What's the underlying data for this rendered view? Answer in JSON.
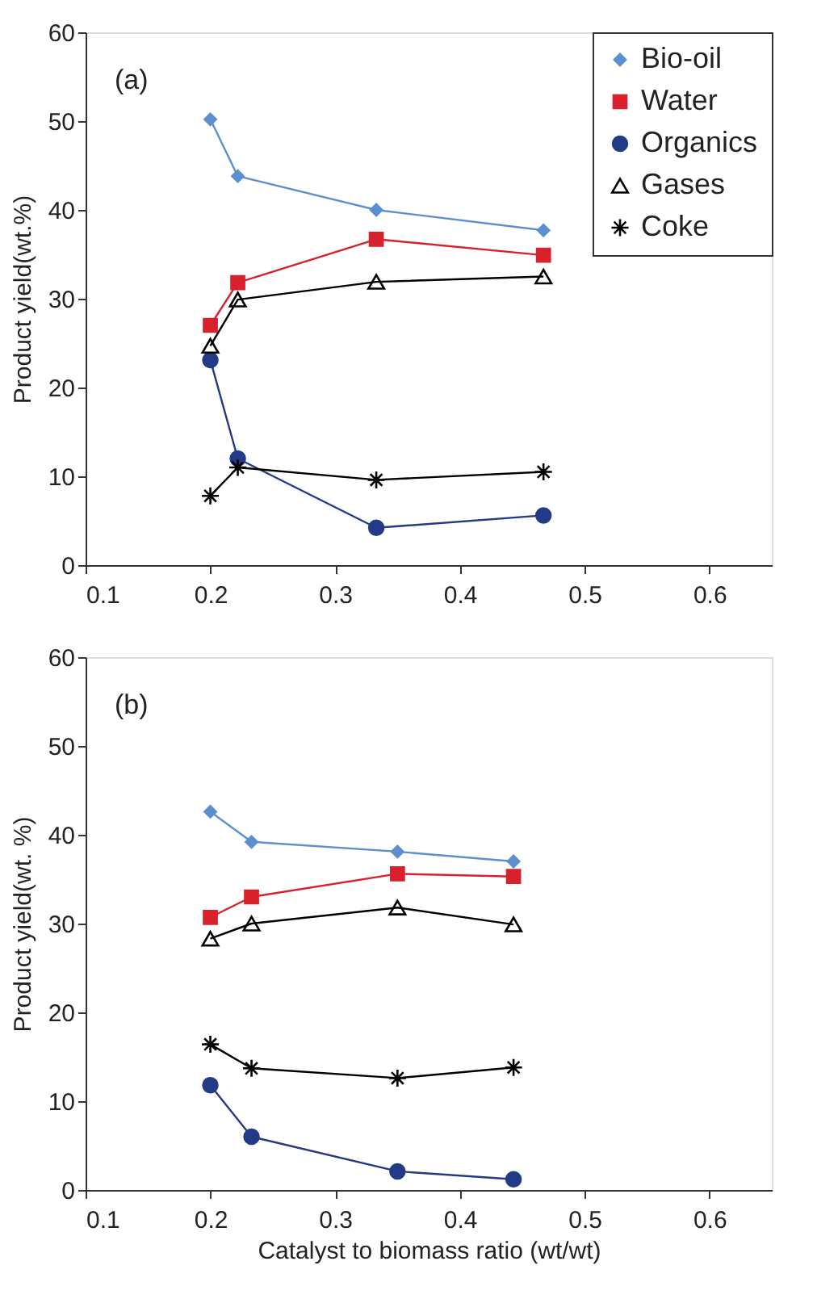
{
  "chart_data": [
    {
      "type": "line",
      "ylabel": "Product yield(wt.%)",
      "annotations": [
        "(a)"
      ],
      "xlim": [
        0.1,
        0.65
      ],
      "ylim": [
        0,
        60
      ],
      "xticks": [
        0.1,
        0.2,
        0.3,
        0.4,
        0.5,
        0.6
      ],
      "yticks": [
        0,
        10,
        20,
        30,
        40,
        50,
        60
      ],
      "grid": false,
      "legend": "top right",
      "x": [
        0.2,
        0.222,
        0.333,
        0.467
      ],
      "series": [
        {
          "name": "Bio-oil",
          "color": "#5b8fd0",
          "marker": "diamond",
          "values": [
            50.2,
            43.8,
            40.0,
            37.7
          ]
        },
        {
          "name": "Water",
          "color": "#d7222d",
          "marker": "square",
          "values": [
            27.0,
            31.8,
            36.7,
            34.9
          ]
        },
        {
          "name": "Organics",
          "color": "#233a86",
          "marker": "circle",
          "values": [
            23.1,
            12.0,
            4.2,
            5.6
          ]
        },
        {
          "name": "Gases",
          "color": "#000000",
          "marker": "triangle",
          "values": [
            24.7,
            29.9,
            31.9,
            32.5
          ]
        },
        {
          "name": "Coke",
          "color": "#000000",
          "marker": "cross",
          "values": [
            7.8,
            11.0,
            9.6,
            10.5
          ]
        }
      ]
    },
    {
      "type": "line",
      "xlabel": "Catalyst to biomass ratio (wt/wt)",
      "ylabel": "Product yield(wt. %)",
      "annotations": [
        "(b)"
      ],
      "xlim": [
        0.1,
        0.65
      ],
      "ylim": [
        0,
        60
      ],
      "xticks": [
        0.1,
        0.2,
        0.3,
        0.4,
        0.5,
        0.6
      ],
      "yticks": [
        0,
        10,
        20,
        30,
        40,
        50,
        60
      ],
      "grid": false,
      "legend": "top right",
      "x": [
        0.2,
        0.233,
        0.35,
        0.443
      ],
      "series": [
        {
          "name": "Bio-oil",
          "color": "#5b8fd0",
          "marker": "diamond",
          "values": [
            42.6,
            39.2,
            38.1,
            37.0
          ]
        },
        {
          "name": "Water",
          "color": "#d7222d",
          "marker": "square",
          "values": [
            30.7,
            33.0,
            35.6,
            35.3
          ]
        },
        {
          "name": "Organics",
          "color": "#233a86",
          "marker": "circle",
          "values": [
            11.8,
            6.0,
            2.1,
            1.2
          ]
        },
        {
          "name": "Gases",
          "color": "#000000",
          "marker": "triangle",
          "values": [
            28.3,
            30.0,
            31.8,
            29.9
          ]
        },
        {
          "name": "Coke",
          "color": "#000000",
          "marker": "cross",
          "values": [
            16.4,
            13.7,
            12.6,
            13.8
          ]
        }
      ]
    }
  ]
}
